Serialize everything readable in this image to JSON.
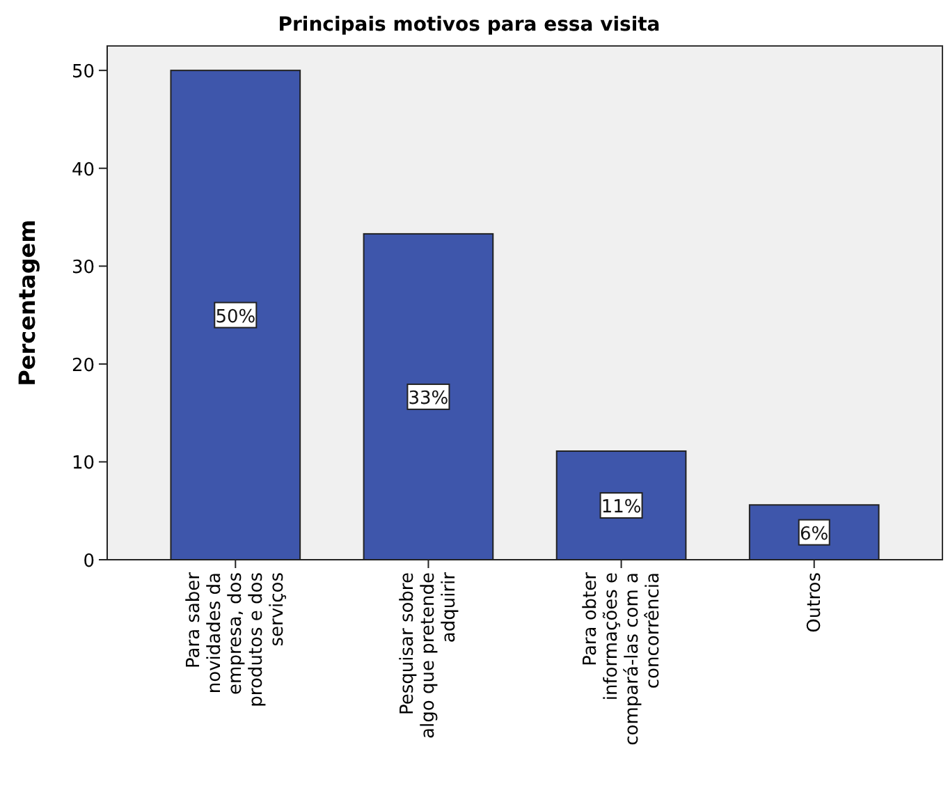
{
  "chart_data": {
    "type": "bar",
    "title": "Principais motivos para essa visita",
    "ylabel": "Percentagem",
    "categories": [
      "Para saber novidades da empresa, dos produtos e dos serviços",
      "Pesquisar sobre algo que pretende adquirir",
      "Para obter informações e compará-las com a concorrência",
      "Outros"
    ],
    "values": [
      50,
      33.3,
      11.1,
      5.6
    ],
    "value_labels": [
      "50%",
      "33%",
      "11%",
      "6%"
    ],
    "color": "#3e56ab",
    "ylim": [
      0,
      52.5
    ],
    "yticks": [
      0,
      10,
      20,
      30,
      40,
      50
    ],
    "grid": false
  }
}
